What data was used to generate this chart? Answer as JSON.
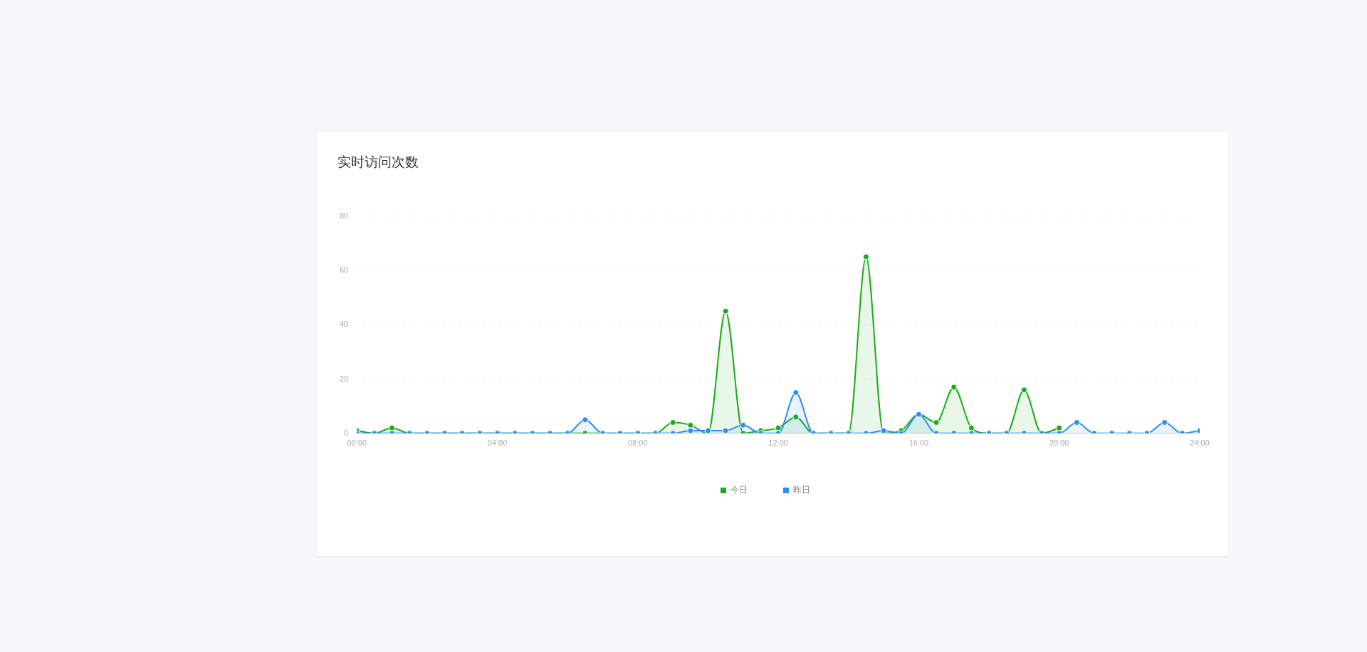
{
  "chart_data": {
    "type": "line",
    "title": "实时访问次数",
    "x": [
      0,
      0.5,
      1,
      1.5,
      2,
      2.5,
      3,
      3.5,
      4,
      4.5,
      5,
      5.5,
      6,
      6.5,
      7,
      7.5,
      8,
      8.5,
      9,
      9.5,
      10,
      10.5,
      11,
      11.5,
      12,
      12.5,
      13,
      13.5,
      14,
      14.5,
      15,
      15.5,
      16,
      16.5,
      17,
      17.5,
      18,
      18.5,
      19,
      19.5,
      20,
      20.5,
      21,
      21.5,
      22,
      22.5,
      23,
      23.5,
      24
    ],
    "series": [
      {
        "name": "今日",
        "color": "#1aad19",
        "values": [
          1,
          0,
          2,
          0,
          0,
          0,
          0,
          0,
          0,
          0,
          0,
          0,
          0,
          0,
          0,
          0,
          0,
          0,
          4,
          3,
          0,
          45,
          0,
          1,
          2,
          6,
          0,
          0,
          0,
          65,
          0,
          1,
          7,
          4,
          17,
          2,
          0,
          0,
          16,
          0,
          2,
          null,
          null,
          null,
          null,
          null,
          null,
          null,
          null
        ]
      },
      {
        "name": "昨日",
        "color": "#2b8ff5",
        "values": [
          0,
          0,
          0,
          0,
          0,
          0,
          0,
          0,
          0,
          0,
          0,
          0,
          0,
          5,
          0,
          0,
          0,
          0,
          0,
          1,
          1,
          1,
          3,
          0,
          0,
          15,
          0,
          0,
          0,
          0,
          1,
          0,
          7,
          0,
          0,
          0,
          0,
          0,
          0,
          0,
          0,
          4,
          0,
          0,
          0,
          0,
          4,
          0,
          1
        ]
      }
    ],
    "xlim": [
      0,
      24
    ],
    "xticks": [
      {
        "value": 0,
        "label": "00:00"
      },
      {
        "value": 4,
        "label": "04:00"
      },
      {
        "value": 8,
        "label": "08:00"
      },
      {
        "value": 12,
        "label": "12:00"
      },
      {
        "value": 16,
        "label": "16:00"
      },
      {
        "value": 20,
        "label": "20:00"
      },
      {
        "value": 24,
        "label": "24:00"
      }
    ],
    "ylim": [
      0,
      80
    ],
    "yticks": [
      0,
      20,
      40,
      60,
      80
    ],
    "grid": "y",
    "legend": "bottom",
    "marker": "circle",
    "line_style": "solid"
  }
}
